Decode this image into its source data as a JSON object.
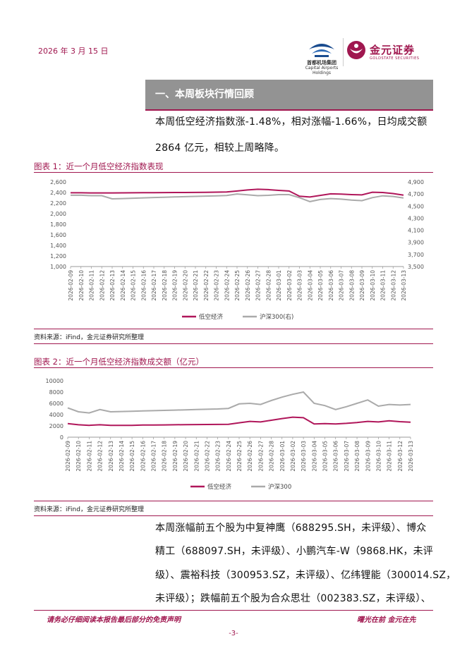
{
  "header": {
    "date": "2026 年 3 月 15 日",
    "logo1_caption": "首都机场集团",
    "logo1_caption_en": "Capital Airports Holdings",
    "logo2_name": "金元证券",
    "logo2_en": "GOLDSTATE SECURITIES"
  },
  "section": {
    "title": "一、本周板块行情回顾",
    "para1_line1": "本周低空经济指数涨-1.48%，相对涨幅-1.66%，日均成交额",
    "para1_line2": "2864 亿元，相较上周略降。"
  },
  "figure1": {
    "title": "图表 1：近一个月低空经济指数表现",
    "source": "资料来源：iFind，金元证券研究所整理"
  },
  "figure2": {
    "title": "图表 2：近一个月低空经济指数成交额（亿元）",
    "source": "资料来源：iFind，金元证券研究所整理"
  },
  "bottom_text": {
    "line1": "本周涨幅前五个股为中复神鹰（688295.SH，未评级）、博众",
    "line2": "精工（688097.SH，未评级）、小鹏汽车-W（9868.HK，未评",
    "line3": "级）、震裕科技（300953.SZ，未评级）、亿纬锂能（300014.SZ，",
    "line4": "未评级）；跌幅前五个股为合众思壮（002383.SZ，未评级）、"
  },
  "footer": {
    "disclaimer": "请务必仔细阅读本报告最后部分的免责声明",
    "slogan": "曙光在前 金元在先",
    "page": "-3-"
  },
  "colors": {
    "accent": "#a0174f",
    "series1": "#b0165a",
    "series2": "#aaaaaa"
  },
  "chart_data": [
    {
      "type": "line",
      "title": "图表 1：近一个月低空经济指数表现",
      "x": [
        "2026-02-09",
        "2026-02-10",
        "2026-02-11",
        "2026-02-12",
        "2026-02-13",
        "2026-02-14",
        "2026-02-15",
        "2026-02-16",
        "2026-02-17",
        "2026-02-18",
        "2026-02-19",
        "2026-02-20",
        "2026-02-21",
        "2026-02-22",
        "2026-02-23",
        "2026-02-24",
        "2026-02-25",
        "2026-02-26",
        "2026-02-27",
        "2026-02-28",
        "2026-03-01",
        "2026-03-02",
        "2026-03-03",
        "2026-03-04",
        "2026-03-05",
        "2026-03-06",
        "2026-03-07",
        "2026-03-08",
        "2026-03-09",
        "2026-03-10",
        "2026-03-11",
        "2026-03-12",
        "2026-03-13"
      ],
      "yticks_left": [
        "2,600",
        "2,400",
        "2,200",
        "2,000",
        "1,800",
        "1,600",
        "1,400",
        "1,200",
        "1,000"
      ],
      "yticks_right": [
        "4,900",
        "4,700",
        "4,500",
        "4,300",
        "4,100",
        "3,900",
        "3,700",
        "3,500"
      ],
      "ylim_left": [
        1000,
        2600
      ],
      "ylim_right": [
        3500,
        4900
      ],
      "grid": false,
      "legend_position": "bottom",
      "series": [
        {
          "name": "低空经济",
          "axis": "left",
          "values": [
            2395,
            2395,
            2392,
            2392,
            2392,
            2393,
            2395,
            2396,
            2397,
            2398,
            2400,
            2400,
            2401,
            2404,
            2406,
            2409,
            2428,
            2448,
            2462,
            2455,
            2440,
            2428,
            2330,
            2315,
            2345,
            2375,
            2370,
            2360,
            2355,
            2405,
            2400,
            2380,
            2350
          ]
        },
        {
          "name": "沪深300(右)",
          "axis": "right",
          "values": [
            4680,
            4680,
            4672,
            4672,
            4620,
            4625,
            4630,
            4636,
            4642,
            4646,
            4652,
            4656,
            4661,
            4666,
            4670,
            4676,
            4700,
            4686,
            4672,
            4678,
            4690,
            4690,
            4640,
            4575,
            4610,
            4625,
            4615,
            4600,
            4590,
            4640,
            4670,
            4660,
            4635
          ]
        }
      ]
    },
    {
      "type": "line",
      "title": "图表 2：近一个月低空经济指数成交额（亿元）",
      "x": [
        "2026-02-09",
        "2026-02-10",
        "2026-02-11",
        "2026-02-12",
        "2026-02-13",
        "2026-02-14",
        "2026-02-15",
        "2026-02-16",
        "2026-02-17",
        "2026-02-18",
        "2026-02-19",
        "2026-02-20",
        "2026-02-21",
        "2026-02-22",
        "2026-02-23",
        "2026-02-24",
        "2026-02-25",
        "2026-02-26",
        "2026-02-27",
        "2026-02-28",
        "2026-03-01",
        "2026-03-02",
        "2026-03-03",
        "2026-03-04",
        "2026-03-05",
        "2026-03-06",
        "2026-03-07",
        "2026-03-08",
        "2026-03-09",
        "2026-03-10",
        "2026-03-11",
        "2026-03-12",
        "2026-03-13"
      ],
      "yticks": [
        "10000",
        "8000",
        "6000",
        "4000",
        "2000",
        "0"
      ],
      "ylim": [
        0,
        10000
      ],
      "grid": false,
      "legend_position": "bottom",
      "series": [
        {
          "name": "低空经济",
          "values": [
            2400,
            2200,
            2100,
            2200,
            2100,
            2100,
            2100,
            2150,
            2150,
            2180,
            2200,
            2220,
            2240,
            2250,
            2260,
            2280,
            2550,
            2800,
            2700,
            3000,
            3300,
            3550,
            3450,
            2350,
            2400,
            2350,
            2450,
            2600,
            2800,
            2700,
            2900,
            2750,
            2650
          ]
        },
        {
          "name": "沪深300",
          "values": [
            5200,
            4500,
            4300,
            4900,
            4500,
            4550,
            4600,
            4650,
            4700,
            4750,
            4800,
            4850,
            4900,
            4950,
            5000,
            5100,
            5900,
            6000,
            5800,
            6500,
            7100,
            7600,
            8000,
            6000,
            5600,
            4900,
            5400,
            6000,
            6600,
            5500,
            5800,
            5700,
            5800
          ]
        }
      ]
    }
  ]
}
